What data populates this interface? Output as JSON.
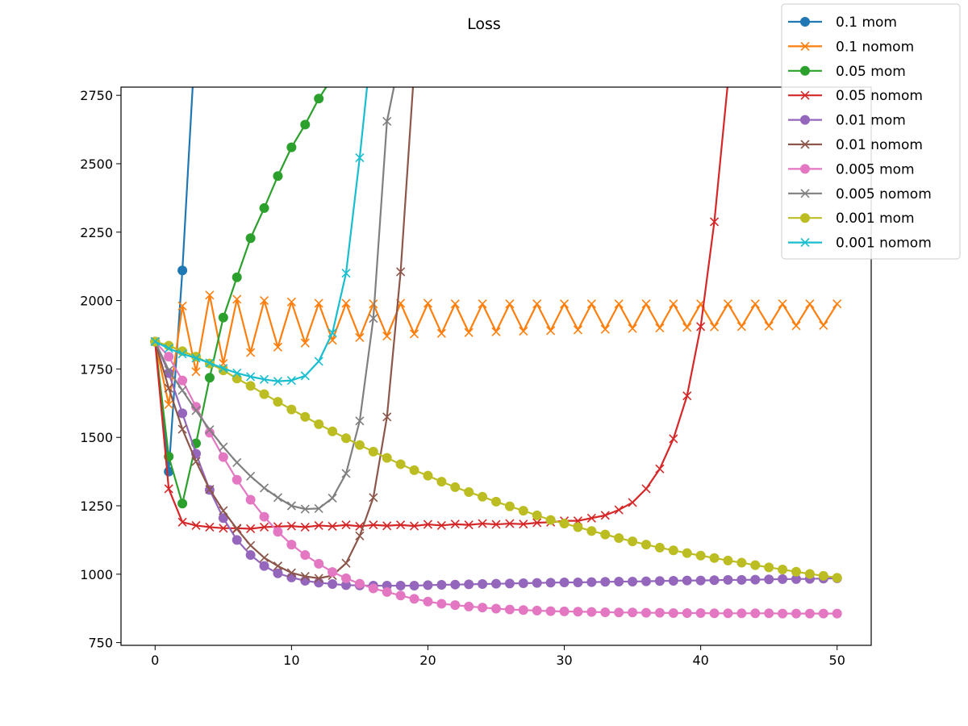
{
  "chart_data": {
    "type": "line",
    "title": "Loss",
    "xlabel": "",
    "ylabel": "",
    "xlim": [
      -2.5,
      52.5
    ],
    "ylim": [
      740,
      2780
    ],
    "xticks": [
      0,
      10,
      20,
      30,
      40,
      50
    ],
    "yticks": [
      750,
      1000,
      1250,
      1500,
      1750,
      2000,
      2250,
      2500,
      2750
    ],
    "grid": false,
    "legend_position": "top-right",
    "series": [
      {
        "name": "0.1 mom",
        "color": "#1f77b4",
        "marker": "o",
        "x": [
          0,
          1,
          2,
          3
        ],
        "y": [
          1850,
          1375,
          2110,
          3000
        ]
      },
      {
        "name": "0.1 nomom",
        "color": "#ff7f0e",
        "marker": "x",
        "x": [
          0,
          1,
          2,
          3,
          4,
          5,
          6,
          7,
          8,
          9,
          10,
          11,
          12,
          13,
          14,
          15,
          16,
          17,
          18,
          19,
          20,
          21,
          22,
          23,
          24,
          25,
          26,
          27,
          28,
          29,
          30,
          31,
          32,
          33,
          34,
          35,
          36,
          37,
          38,
          39,
          40,
          41,
          42,
          43,
          44,
          45,
          46,
          47,
          48,
          49,
          50
        ],
        "y": [
          1850,
          1620,
          1980,
          1740,
          2020,
          1770,
          2005,
          1810,
          2000,
          1830,
          1995,
          1845,
          1990,
          1855,
          1990,
          1865,
          1988,
          1870,
          1990,
          1878,
          1990,
          1880,
          1988,
          1883,
          1988,
          1886,
          1988,
          1888,
          1988,
          1890,
          1988,
          1893,
          1988,
          1895,
          1988,
          1898,
          1988,
          1900,
          1988,
          1902,
          1988,
          1904,
          1988,
          1905,
          1988,
          1907,
          1988,
          1908,
          1988,
          1909,
          1988
        ]
      },
      {
        "name": "0.05 mom",
        "color": "#2ca02c",
        "marker": "o",
        "x": [
          0,
          1,
          2,
          3,
          4,
          5,
          6,
          7,
          8,
          9,
          10,
          11,
          12,
          13
        ],
        "y": [
          1850,
          1430,
          1258,
          1478,
          1718,
          1938,
          2085,
          2228,
          2338,
          2455,
          2560,
          2643,
          2738,
          2815
        ]
      },
      {
        "name": "0.05 nomom",
        "color": "#d62728",
        "marker": "x",
        "x": [
          0,
          1,
          2,
          3,
          4,
          5,
          6,
          7,
          8,
          9,
          10,
          11,
          12,
          13,
          14,
          15,
          16,
          17,
          18,
          19,
          20,
          21,
          22,
          23,
          24,
          25,
          26,
          27,
          28,
          29,
          30,
          31,
          32,
          33,
          34,
          35,
          36,
          37,
          38,
          39,
          40,
          41,
          42
        ],
        "y": [
          1850,
          1312,
          1190,
          1178,
          1172,
          1168,
          1168,
          1166,
          1172,
          1174,
          1176,
          1172,
          1178,
          1175,
          1180,
          1175,
          1180,
          1177,
          1180,
          1176,
          1182,
          1178,
          1183,
          1180,
          1185,
          1182,
          1185,
          1183,
          1188,
          1190,
          1195,
          1195,
          1205,
          1215,
          1235,
          1262,
          1312,
          1385,
          1495,
          1652,
          1905,
          2288,
          2800
        ]
      },
      {
        "name": "0.01 mom",
        "color": "#9467bd",
        "marker": "o",
        "x": [
          0,
          1,
          2,
          3,
          4,
          5,
          6,
          7,
          8,
          9,
          10,
          11,
          12,
          13,
          14,
          15,
          16,
          17,
          18,
          19,
          20,
          21,
          22,
          23,
          24,
          25,
          26,
          27,
          28,
          29,
          30,
          31,
          32,
          33,
          34,
          35,
          36,
          37,
          38,
          39,
          40,
          41,
          42,
          43,
          44,
          45,
          46,
          47,
          48,
          49,
          50
        ],
        "y": [
          1850,
          1735,
          1588,
          1440,
          1308,
          1205,
          1125,
          1070,
          1030,
          1003,
          988,
          976,
          969,
          964,
          960,
          959,
          958,
          958,
          958,
          958,
          960,
          961,
          962,
          963,
          964,
          965,
          966,
          967,
          968,
          969,
          970,
          970,
          971,
          972,
          973,
          973,
          974,
          975,
          976,
          977,
          977,
          978,
          979,
          979,
          980,
          981,
          982,
          982,
          983,
          984,
          985
        ]
      },
      {
        "name": "0.01 nomom",
        "color": "#8c564b",
        "marker": "x",
        "x": [
          0,
          1,
          2,
          3,
          4,
          5,
          6,
          7,
          8,
          9,
          10,
          11,
          12,
          13,
          14,
          15,
          16,
          17,
          18,
          19
        ],
        "y": [
          1850,
          1680,
          1530,
          1412,
          1310,
          1232,
          1165,
          1105,
          1060,
          1030,
          1005,
          992,
          985,
          995,
          1040,
          1140,
          1280,
          1575,
          2105,
          2850
        ]
      },
      {
        "name": "0.005 mom",
        "color": "#e377c2",
        "marker": "o",
        "x": [
          0,
          1,
          2,
          3,
          4,
          5,
          6,
          7,
          8,
          9,
          10,
          11,
          12,
          13,
          14,
          15,
          16,
          17,
          18,
          19,
          20,
          21,
          22,
          23,
          24,
          25,
          26,
          27,
          28,
          29,
          30,
          31,
          32,
          33,
          34,
          35,
          36,
          37,
          38,
          39,
          40,
          41,
          42,
          43,
          44,
          45,
          46,
          47,
          48,
          49,
          50
        ],
        "y": [
          1850,
          1795,
          1708,
          1612,
          1517,
          1428,
          1345,
          1272,
          1210,
          1155,
          1108,
          1070,
          1038,
          1008,
          985,
          965,
          948,
          935,
          922,
          910,
          900,
          892,
          887,
          882,
          878,
          874,
          871,
          869,
          867,
          865,
          864,
          863,
          862,
          861,
          860,
          860,
          859,
          859,
          858,
          858,
          858,
          857,
          857,
          857,
          857,
          857,
          856,
          856,
          856,
          856,
          856
        ]
      },
      {
        "name": "0.005 nomom",
        "color": "#7f7f7f",
        "marker": "x",
        "x": [
          0,
          1,
          2,
          3,
          4,
          5,
          6,
          7,
          8,
          9,
          10,
          11,
          12,
          13,
          14,
          15,
          16,
          17,
          18
        ],
        "y": [
          1850,
          1745,
          1672,
          1598,
          1528,
          1465,
          1408,
          1358,
          1315,
          1280,
          1250,
          1238,
          1240,
          1278,
          1368,
          1560,
          1935,
          2655,
          2900
        ]
      },
      {
        "name": "0.001 mom",
        "color": "#bcbd22",
        "marker": "o",
        "x": [
          0,
          1,
          2,
          3,
          4,
          5,
          6,
          7,
          8,
          9,
          10,
          11,
          12,
          13,
          14,
          15,
          16,
          17,
          18,
          19,
          20,
          21,
          22,
          23,
          24,
          25,
          26,
          27,
          28,
          29,
          30,
          31,
          32,
          33,
          34,
          35,
          36,
          37,
          38,
          39,
          40,
          41,
          42,
          43,
          44,
          45,
          46,
          47,
          48,
          49,
          50
        ],
        "y": [
          1850,
          1835,
          1815,
          1795,
          1770,
          1745,
          1715,
          1688,
          1658,
          1630,
          1602,
          1575,
          1548,
          1522,
          1497,
          1472,
          1448,
          1425,
          1402,
          1380,
          1360,
          1338,
          1318,
          1300,
          1283,
          1265,
          1248,
          1232,
          1215,
          1198,
          1185,
          1172,
          1158,
          1145,
          1132,
          1120,
          1108,
          1097,
          1087,
          1077,
          1068,
          1059,
          1050,
          1042,
          1033,
          1025,
          1017,
          1009,
          1001,
          994,
          987
        ]
      },
      {
        "name": "0.001 nomom",
        "color": "#17becf",
        "marker": "x",
        "x": [
          0,
          1,
          2,
          3,
          4,
          5,
          6,
          7,
          8,
          9,
          10,
          11,
          12,
          13,
          14,
          15,
          16
        ],
        "y": [
          1850,
          1825,
          1805,
          1790,
          1772,
          1752,
          1735,
          1722,
          1712,
          1705,
          1708,
          1725,
          1778,
          1882,
          2100,
          2522,
          3000
        ]
      }
    ]
  }
}
